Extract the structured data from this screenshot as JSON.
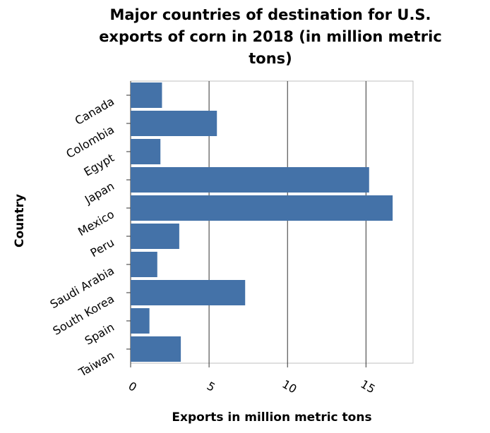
{
  "chart_data": {
    "type": "bar",
    "orientation": "horizontal",
    "title_lines": [
      "Major countries of destination for U.S.",
      "exports of corn in 2018 (in million metric",
      "tons)"
    ],
    "xlabel": "Exports in million metric tons",
    "ylabel": "Country",
    "categories": [
      "Canada",
      "Colombia",
      "Egypt",
      "Japan",
      "Mexico",
      "Peru",
      "Saudi Arabia",
      "South Korea",
      "Spain",
      "Taiwan"
    ],
    "values": [
      2.0,
      5.5,
      1.9,
      15.2,
      16.7,
      3.1,
      1.7,
      7.3,
      1.2,
      3.2
    ],
    "xticks": [
      "0",
      "5",
      "10",
      "15"
    ],
    "xlim": [
      0,
      18
    ],
    "grid": true,
    "color": "#4472a8"
  }
}
